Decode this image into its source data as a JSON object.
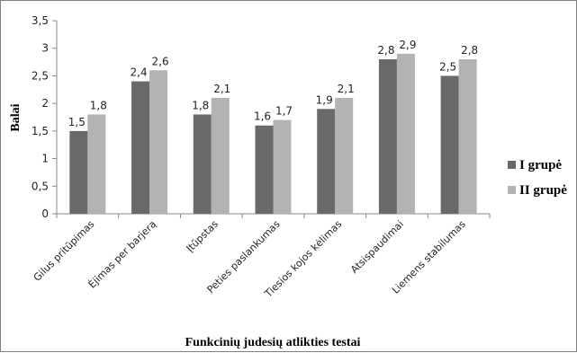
{
  "chart_data": {
    "type": "bar",
    "title": "",
    "xlabel": "Funkcinių judesių atlikties testai",
    "ylabel": "Balai",
    "ylim": [
      0,
      3.5
    ],
    "ytick_step": 0.5,
    "ytick_labels": [
      "0",
      "0,5",
      "1",
      "1,5",
      "2",
      "2,5",
      "3",
      "3,5"
    ],
    "grid": false,
    "legend_position": "right",
    "categories": [
      "Gilus pritūpimas",
      "Ėjimas per barjerą",
      "Įtūpstas",
      "Peties paslankumas",
      "Tiesios kojos kėlimas",
      "Atsispaudimai",
      "Liemens stabilumas"
    ],
    "series": [
      {
        "name": "I grupė",
        "color": "#696969",
        "values": [
          1.5,
          2.4,
          1.8,
          1.6,
          1.9,
          2.8,
          2.5
        ],
        "labels": [
          "1,5",
          "2,4",
          "1,8",
          "1,6",
          "1,9",
          "2,8",
          "2,5"
        ]
      },
      {
        "name": "II grupė",
        "color": "#b3b3b3",
        "values": [
          1.8,
          2.6,
          2.1,
          1.7,
          2.1,
          2.9,
          2.8
        ],
        "labels": [
          "1,8",
          "2,6",
          "2,1",
          "1,7",
          "2,1",
          "2,9",
          "2,8"
        ]
      }
    ]
  }
}
